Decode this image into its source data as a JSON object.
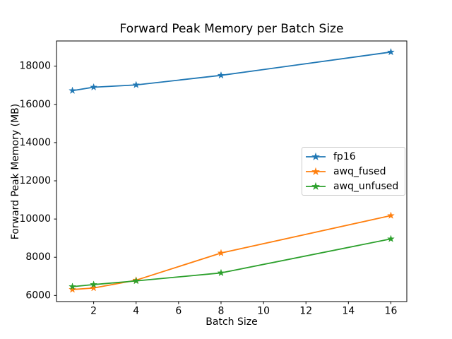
{
  "chart_data": {
    "type": "line",
    "title": "Forward Peak Memory per Batch Size",
    "xlabel": "Batch Size",
    "ylabel": "Forward Peak Memory (MB)",
    "x": [
      1,
      2,
      4,
      8,
      16
    ],
    "series": [
      {
        "name": "fp16",
        "color": "#1f77b4",
        "values": [
          16720,
          16900,
          17020,
          17520,
          18740
        ]
      },
      {
        "name": "awq_fused",
        "color": "#ff7f0e",
        "values": [
          6310,
          6390,
          6800,
          8220,
          10180
        ]
      },
      {
        "name": "awq_unfused",
        "color": "#2ca02c",
        "values": [
          6460,
          6570,
          6760,
          7180,
          8960
        ]
      }
    ],
    "marker": "star",
    "xtick_labels": [
      "2",
      "4",
      "6",
      "8",
      "10",
      "12",
      "14",
      "16"
    ],
    "xtick_values": [
      2,
      4,
      6,
      8,
      10,
      12,
      14,
      16
    ],
    "ytick_labels": [
      "6000",
      "8000",
      "10000",
      "12000",
      "14000",
      "16000",
      "18000"
    ],
    "ytick_values": [
      6000,
      8000,
      10000,
      12000,
      14000,
      16000,
      18000
    ],
    "xlim": [
      0.25,
      16.75
    ],
    "ylim": [
      5680,
      19320
    ],
    "grid": false,
    "legend_position": "center-right",
    "frame_color": "#000000",
    "background": "#ffffff"
  }
}
